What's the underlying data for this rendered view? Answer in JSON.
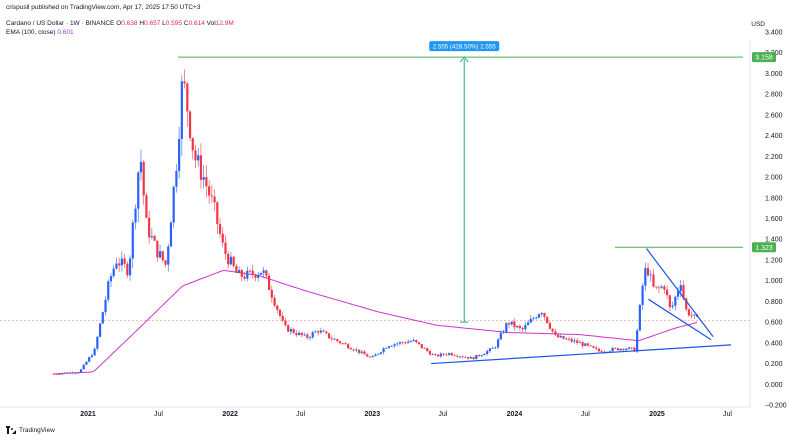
{
  "header": {
    "published": "crispusll published on TradingView.com, Apr 17, 2025 17:50 UTC+3",
    "symbol": "Cardano / US Dollar · 1W · BINANCE",
    "ohlc": {
      "o_label": "O",
      "o": "0.638",
      "h_label": "H",
      "h": "0.657",
      "l_label": "L",
      "l": "0.595",
      "c_label": "C",
      "c": "0.614",
      "vol_label": "Vol",
      "vol": "12.9M"
    },
    "ema_label": "EMA (100, close)",
    "ema_value": "0.601",
    "currency": "USD"
  },
  "branding": {
    "logo_text": "TradingView"
  },
  "colors": {
    "up": "#2962ff",
    "down": "#f23645",
    "ema": "#cc33cc",
    "resistance": "#4caf50",
    "trend": "#1e53e5",
    "dashed": "#f7a4ad",
    "price_tag": "#2196f3",
    "level_tag": "#4caf50"
  },
  "chart_data": {
    "type": "candlestick",
    "timeframe": "1W",
    "x_ticks": [
      "2021",
      "Jul",
      "2022",
      "Jul",
      "2023",
      "Jul",
      "2024",
      "Jul",
      "2025",
      "Jul"
    ],
    "y_ticks": [
      "3.400",
      "3.200",
      "3.000",
      "2.800",
      "2.600",
      "2.400",
      "2.200",
      "2.000",
      "1.800",
      "1.600",
      "1.400",
      "1.200",
      "1.000",
      "0.800",
      "0.600",
      "0.400",
      "0.200",
      "0.000",
      "−0.200"
    ],
    "ylim": [
      -0.2,
      3.4
    ],
    "level_labels": [
      "3.158",
      "1.323"
    ],
    "measure_label": "2.555 (428.50%) 2.555",
    "anchors": [
      {
        "date": "2020-10-05",
        "price": 0.1
      },
      {
        "date": "2020-12-10",
        "price": 0.12
      },
      {
        "date": "2021-01-18",
        "price": 0.33
      },
      {
        "date": "2021-02-25",
        "price": 1.0
      },
      {
        "date": "2021-03-15",
        "price": 1.2
      },
      {
        "date": "2021-04-15",
        "price": 1.1
      },
      {
        "date": "2021-05-15",
        "price": 2.25
      },
      {
        "date": "2021-05-30",
        "price": 1.55
      },
      {
        "date": "2021-06-25",
        "price": 1.3
      },
      {
        "date": "2021-07-20",
        "price": 1.15
      },
      {
        "date": "2021-08-15",
        "price": 2.1
      },
      {
        "date": "2021-09-01",
        "price": 2.95
      },
      {
        "date": "2021-09-12",
        "price": 2.7
      },
      {
        "date": "2021-10-01",
        "price": 2.2
      },
      {
        "date": "2021-10-25",
        "price": 2.0
      },
      {
        "date": "2021-11-20",
        "price": 1.7
      },
      {
        "date": "2021-12-15",
        "price": 1.3
      },
      {
        "date": "2022-01-20",
        "price": 1.05
      },
      {
        "date": "2022-02-15",
        "price": 1.05
      },
      {
        "date": "2022-03-25",
        "price": 1.1
      },
      {
        "date": "2022-04-15",
        "price": 0.9
      },
      {
        "date": "2022-05-20",
        "price": 0.55
      },
      {
        "date": "2022-07-15",
        "price": 0.45
      },
      {
        "date": "2022-08-15",
        "price": 0.52
      },
      {
        "date": "2022-09-15",
        "price": 0.45
      },
      {
        "date": "2022-11-10",
        "price": 0.35
      },
      {
        "date": "2022-12-30",
        "price": 0.25
      },
      {
        "date": "2023-02-10",
        "price": 0.38
      },
      {
        "date": "2023-04-15",
        "price": 0.42
      },
      {
        "date": "2023-06-10",
        "price": 0.27
      },
      {
        "date": "2023-07-15",
        "price": 0.3
      },
      {
        "date": "2023-09-15",
        "price": 0.25
      },
      {
        "date": "2023-11-10",
        "price": 0.35
      },
      {
        "date": "2023-12-15",
        "price": 0.6
      },
      {
        "date": "2024-01-20",
        "price": 0.52
      },
      {
        "date": "2024-03-10",
        "price": 0.72
      },
      {
        "date": "2024-04-15",
        "price": 0.46
      },
      {
        "date": "2024-06-15",
        "price": 0.4
      },
      {
        "date": "2024-08-05",
        "price": 0.32
      },
      {
        "date": "2024-10-10",
        "price": 0.35
      },
      {
        "date": "2024-11-05",
        "price": 0.33
      },
      {
        "date": "2024-11-25",
        "price": 0.95
      },
      {
        "date": "2024-12-05",
        "price": 1.15
      },
      {
        "date": "2024-12-25",
        "price": 0.9
      },
      {
        "date": "2025-01-20",
        "price": 0.95
      },
      {
        "date": "2025-02-05",
        "price": 0.7
      },
      {
        "date": "2025-03-03",
        "price": 1.0
      },
      {
        "date": "2025-03-15",
        "price": 0.72
      },
      {
        "date": "2025-04-17",
        "price": 0.61
      }
    ],
    "ema_100": [
      {
        "date": "2020-10-05",
        "price": 0.1
      },
      {
        "date": "2021-01-15",
        "price": 0.12
      },
      {
        "date": "2021-05-01",
        "price": 0.5
      },
      {
        "date": "2021-09-01",
        "price": 0.95
      },
      {
        "date": "2021-12-15",
        "price": 1.1
      },
      {
        "date": "2022-03-15",
        "price": 1.05
      },
      {
        "date": "2022-07-15",
        "price": 0.9
      },
      {
        "date": "2023-01-15",
        "price": 0.7
      },
      {
        "date": "2023-06-15",
        "price": 0.57
      },
      {
        "date": "2023-12-15",
        "price": 0.5
      },
      {
        "date": "2024-06-15",
        "price": 0.48
      },
      {
        "date": "2024-11-15",
        "price": 0.42
      },
      {
        "date": "2025-02-15",
        "price": 0.54
      },
      {
        "date": "2025-04-17",
        "price": 0.6
      }
    ],
    "resistance": {
      "price": 3.158,
      "from": "2021-08-20",
      "to": "2025-08-10"
    },
    "level_1323": {
      "price": 1.323,
      "from": "2024-09-15",
      "to": "2025-08-10"
    },
    "measure": {
      "date": "2023-08-25",
      "from_price": 0.6,
      "to_price": 3.158
    },
    "support_trendline": {
      "from_date": "2023-06-01",
      "from_price": 0.2,
      "to_date": "2025-07-10",
      "to_price": 0.38
    },
    "wedge_upper": {
      "from_date": "2024-12-05",
      "from_price": 1.31,
      "to_date": "2025-05-25",
      "to_price": 0.46
    },
    "wedge_lower": {
      "from_date": "2024-12-10",
      "from_price": 0.82,
      "to_date": "2025-05-20",
      "to_price": 0.43
    },
    "dashed_level": 0.614
  }
}
